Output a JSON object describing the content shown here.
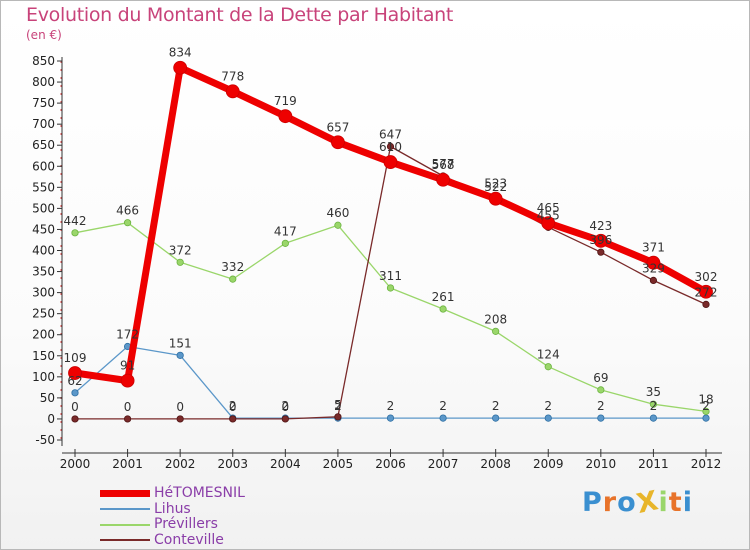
{
  "chart_data": {
    "type": "line",
    "title": "Evolution du Montant de la Dette par Habitant",
    "ylabel": "(en €)",
    "xlabel": "",
    "categories": [
      "2000",
      "2001",
      "2002",
      "2003",
      "2004",
      "2005",
      "2006",
      "2007",
      "2008",
      "2009",
      "2010",
      "2011",
      "2012"
    ],
    "ylim": [
      -50,
      850
    ],
    "yticks": [
      -50,
      0,
      50,
      100,
      150,
      200,
      250,
      300,
      350,
      400,
      450,
      500,
      550,
      600,
      650,
      700,
      750,
      800,
      850
    ],
    "grid": false,
    "legend_position": "bottom-left",
    "series": [
      {
        "name": "HéTOMESNIL",
        "color": "#ee0000",
        "values": [
          109,
          91,
          834,
          778,
          719,
          657,
          610,
          568,
          523,
          465,
          423,
          371,
          302
        ],
        "labels": [
          "109",
          "91",
          "834",
          "778",
          "719",
          "657",
          "610",
          "568",
          "523",
          "465",
          "423",
          "371",
          "302"
        ]
      },
      {
        "name": "Lihus",
        "color": "#5b97c9",
        "values": [
          62,
          172,
          151,
          2,
          2,
          2,
          2,
          2,
          2,
          2,
          2,
          2,
          2
        ],
        "labels": [
          "62",
          "172",
          "151",
          "2",
          "2",
          "2",
          "2",
          "2",
          "2",
          "2",
          "2",
          "2",
          "2"
        ]
      },
      {
        "name": "Prévillers",
        "color": "#9ad66a",
        "values": [
          442,
          466,
          372,
          332,
          417,
          460,
          311,
          261,
          208,
          124,
          69,
          35,
          18
        ],
        "labels": [
          "442",
          "466",
          "372",
          "332",
          "417",
          "460",
          "311",
          "261",
          "208",
          "124",
          "69",
          "35",
          "18"
        ]
      },
      {
        "name": "Conteville",
        "color": "#7a2a2a",
        "values": [
          0,
          0,
          0,
          0,
          0,
          5,
          647,
          577,
          522,
          455,
          396,
          329,
          272
        ],
        "labels": [
          "0",
          "0",
          "0",
          "0",
          "0",
          "5",
          "647",
          "577",
          "522",
          "455",
          "396",
          "329",
          "272"
        ]
      }
    ]
  },
  "logo": {
    "text": "ProXiti",
    "letters": [
      "P",
      "r",
      "o",
      "X",
      "i",
      "t",
      "i"
    ],
    "colors": [
      "#3a8fd0",
      "#e8732a",
      "#3a8fd0",
      "#e8b52a",
      "#9ad66a",
      "#e8732a",
      "#3a8fd0"
    ]
  }
}
